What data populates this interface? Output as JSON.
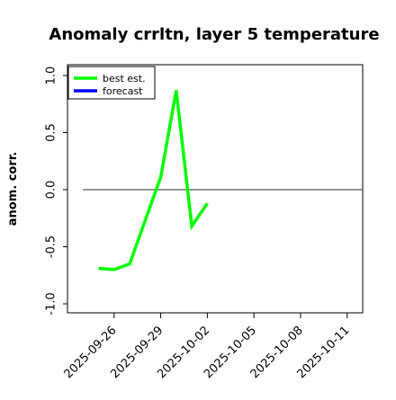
{
  "chart_data": {
    "type": "line",
    "title": "Anomaly crrltn, layer 5 temperature",
    "xlabel": "",
    "ylabel": "anom. corr.",
    "ylim": [
      -1.0,
      1.0
    ],
    "xlim": [
      "2025-09-23",
      "2025-10-12"
    ],
    "y_ticks": [
      -1.0,
      -0.5,
      0.0,
      0.5,
      1.0
    ],
    "y_tick_labels": [
      "-1.0",
      "-0.5",
      "0.0",
      "0.5",
      "1.0"
    ],
    "x_ticks": [
      "2025-09-26",
      "2025-09-29",
      "2025-10-02",
      "2025-10-05",
      "2025-10-08",
      "2025-10-11"
    ],
    "x_tick_labels": [
      "2025-09-26",
      "2025-09-29",
      "2025-10-02",
      "2025-10-05",
      "2025-10-08",
      "2025-10-11"
    ],
    "highlight_tick": "2025-10-02",
    "highlight_color": "#228B22",
    "reference_line": {
      "y": 0.0,
      "x_start": "2025-09-24",
      "x_end": "2025-10-12",
      "color": "#555555"
    },
    "grid": false,
    "legend_position": "top-left",
    "series": [
      {
        "name": "best est.",
        "color": "#00FF00",
        "x": [
          "2025-09-25",
          "2025-09-26",
          "2025-09-27",
          "2025-09-28",
          "2025-09-29",
          "2025-09-30",
          "2025-10-01",
          "2025-10-02"
        ],
        "y": [
          -0.69,
          -0.7,
          -0.65,
          -0.27,
          0.11,
          0.87,
          -0.32,
          -0.12
        ]
      },
      {
        "name": "forecast",
        "color": "#0000FF",
        "x": [],
        "y": []
      }
    ]
  }
}
